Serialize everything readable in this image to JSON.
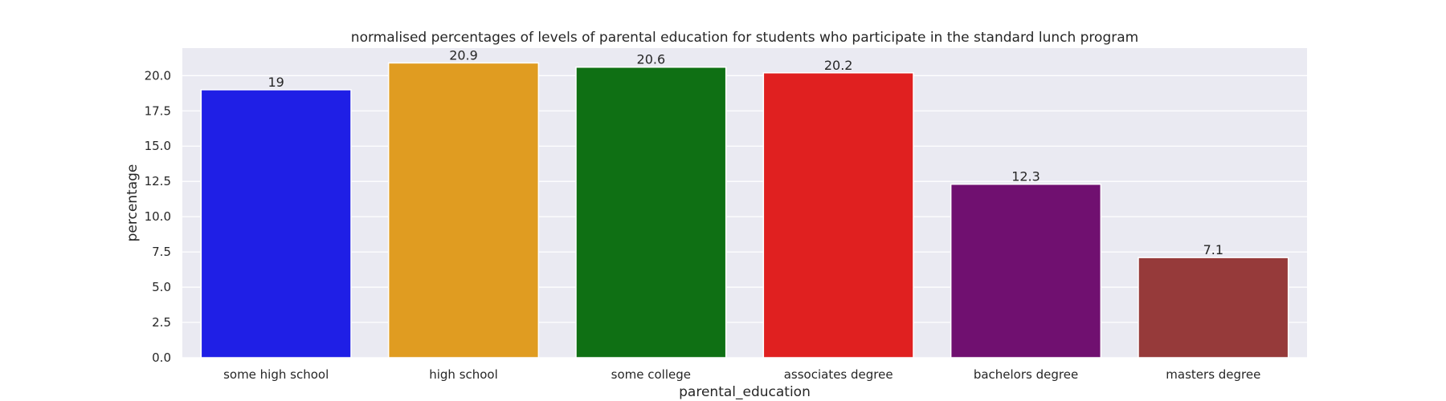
{
  "chart_data": {
    "type": "bar",
    "title": "normalised percentages of levels of parental education for students who participate in the standard lunch program",
    "xlabel": "parental_education",
    "ylabel": "percentage",
    "categories": [
      "some high school",
      "high school",
      "some college",
      "associates degree",
      "bachelors degree",
      "masters degree"
    ],
    "values": [
      19,
      20.9,
      20.6,
      20.2,
      12.3,
      7.1
    ],
    "value_labels": [
      "19",
      "20.9",
      "20.6",
      "20.2",
      "12.3",
      "7.1"
    ],
    "colors": [
      "#1f1fe6",
      "#e09c21",
      "#0f7014",
      "#e02020",
      "#701070",
      "#963a3a"
    ],
    "ylim": [
      0,
      21.95
    ],
    "yticks": [
      0,
      2.5,
      5,
      7.5,
      10,
      12.5,
      15,
      17.5,
      20
    ],
    "ytick_labels": [
      "0.0",
      "2.5",
      "5.0",
      "7.5",
      "10.0",
      "12.5",
      "15.0",
      "17.5",
      "20.0"
    ],
    "grid": true,
    "plot_background": "#eaeaf2",
    "grid_color": "#ffffff"
  }
}
